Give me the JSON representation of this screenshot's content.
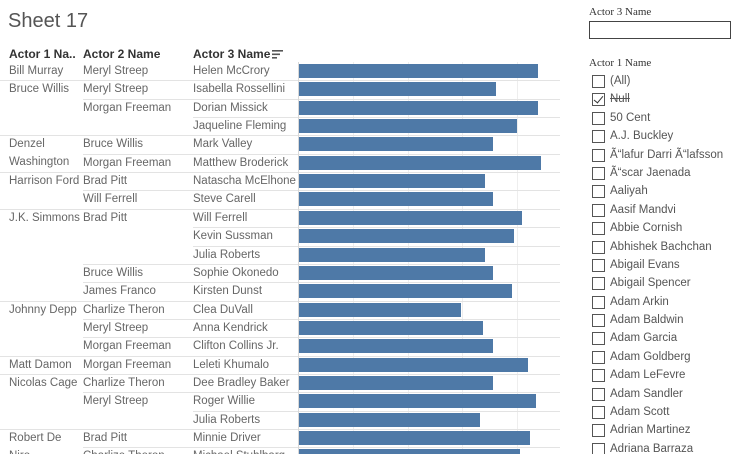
{
  "sheet": {
    "title": "Sheet 17"
  },
  "table": {
    "headers": {
      "actor1": "Actor 1 Na..",
      "actor2": "Actor 2 Name",
      "actor3": "Actor 3 Name"
    },
    "sort_icon": "sort-descending-icon",
    "bar_color": "#4e79a7",
    "rows": [
      {
        "actor1": "Bill Murray",
        "actor2": "Meryl Streep",
        "actor3": "Helen McCrory",
        "value": 0.9
      },
      {
        "actor1": "Bruce Willis",
        "actor2": "Meryl Streep",
        "actor3": "Isabella Rossellini",
        "value": 0.74
      },
      {
        "actor1": "",
        "actor2": "Morgan Freeman",
        "actor3": "Dorian Missick",
        "value": 0.9
      },
      {
        "actor1": "",
        "actor2": "",
        "actor3": "Jaqueline Fleming",
        "value": 0.82
      },
      {
        "actor1": "Denzel Washington",
        "actor2": "Bruce Willis",
        "actor3": "Mark Valley",
        "value": 0.73
      },
      {
        "actor1": "",
        "actor2": "Morgan Freeman",
        "actor3": "Matthew Broderick",
        "value": 0.91
      },
      {
        "actor1": "Harrison Ford",
        "actor2": "Brad Pitt",
        "actor3": "Natascha McElhone",
        "value": 0.7
      },
      {
        "actor1": "",
        "actor2": "Will Ferrell",
        "actor3": "Steve Carell",
        "value": 0.73
      },
      {
        "actor1": "J.K. Simmons",
        "actor2": "Brad Pitt",
        "actor3": "Will Ferrell",
        "value": 0.84
      },
      {
        "actor1": "",
        "actor2": "",
        "actor3": "Kevin Sussman",
        "value": 0.81
      },
      {
        "actor1": "",
        "actor2": "",
        "actor3": "Julia Roberts",
        "value": 0.7
      },
      {
        "actor1": "",
        "actor2": "Bruce Willis",
        "actor3": "Sophie Okonedo",
        "value": 0.73
      },
      {
        "actor1": "",
        "actor2": "James Franco",
        "actor3": "Kirsten Dunst",
        "value": 0.8
      },
      {
        "actor1": "Johnny Depp",
        "actor2": "Charlize Theron",
        "actor3": "Clea DuVall",
        "value": 0.61
      },
      {
        "actor1": "",
        "actor2": "Meryl Streep",
        "actor3": "Anna Kendrick",
        "value": 0.69
      },
      {
        "actor1": "",
        "actor2": "Morgan Freeman",
        "actor3": "Clifton Collins Jr.",
        "value": 0.73
      },
      {
        "actor1": "Matt Damon",
        "actor2": "Morgan Freeman",
        "actor3": "Leleti Khumalo",
        "value": 0.86
      },
      {
        "actor1": "Nicolas Cage",
        "actor2": "Charlize Theron",
        "actor3": "Dee Bradley Baker",
        "value": 0.73
      },
      {
        "actor1": "",
        "actor2": "Meryl Streep",
        "actor3": "Roger Willie",
        "value": 0.89
      },
      {
        "actor1": "",
        "actor2": "",
        "actor3": "Julia Roberts",
        "value": 0.68
      },
      {
        "actor1": "Robert De Niro",
        "actor2": "Brad Pitt",
        "actor3": "Minnie Driver",
        "value": 0.87
      },
      {
        "actor1": "",
        "actor2": "Charlize Theron",
        "actor3": "Michael Stuhlbarg",
        "value": 0.83
      }
    ]
  },
  "filters": {
    "actor3": {
      "title": "Actor 3 Name",
      "value": ""
    },
    "actor1": {
      "title": "Actor 1 Name",
      "items": [
        {
          "label": "(All)",
          "checked": false,
          "struck": false
        },
        {
          "label": "Null",
          "checked": true,
          "struck": true
        },
        {
          "label": "50 Cent",
          "checked": false,
          "struck": false
        },
        {
          "label": "A.J. Buckley",
          "checked": false,
          "struck": false
        },
        {
          "label": "Ã“lafur Darri Ã“lafsson",
          "checked": false,
          "struck": false
        },
        {
          "label": "Ã“scar Jaenada",
          "checked": false,
          "struck": false
        },
        {
          "label": "Aaliyah",
          "checked": false,
          "struck": false
        },
        {
          "label": "Aasif Mandvi",
          "checked": false,
          "struck": false
        },
        {
          "label": "Abbie Cornish",
          "checked": false,
          "struck": false
        },
        {
          "label": "Abhishek Bachchan",
          "checked": false,
          "struck": false
        },
        {
          "label": "Abigail Evans",
          "checked": false,
          "struck": false
        },
        {
          "label": "Abigail Spencer",
          "checked": false,
          "struck": false
        },
        {
          "label": "Adam Arkin",
          "checked": false,
          "struck": false
        },
        {
          "label": "Adam Baldwin",
          "checked": false,
          "struck": false
        },
        {
          "label": "Adam Garcia",
          "checked": false,
          "struck": false
        },
        {
          "label": "Adam Goldberg",
          "checked": false,
          "struck": false
        },
        {
          "label": "Adam LeFevre",
          "checked": false,
          "struck": false
        },
        {
          "label": "Adam Sandler",
          "checked": false,
          "struck": false
        },
        {
          "label": "Adam Scott",
          "checked": false,
          "struck": false
        },
        {
          "label": "Adrian Martinez",
          "checked": false,
          "struck": false
        },
        {
          "label": "Adriana Barraza",
          "checked": false,
          "struck": false
        }
      ]
    }
  }
}
